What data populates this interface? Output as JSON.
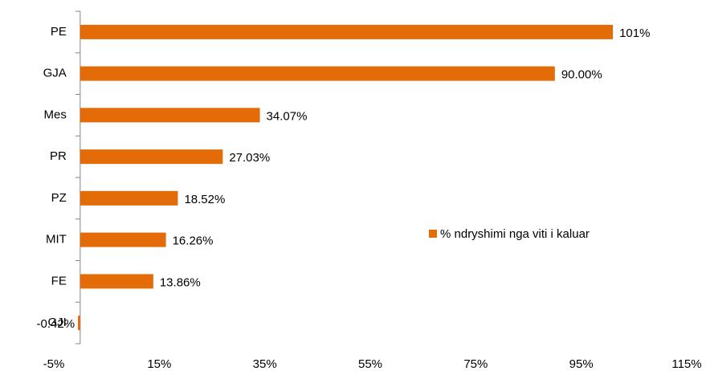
{
  "chart_data": {
    "type": "bar",
    "orientation": "horizontal",
    "categories": [
      "PE",
      "GJA",
      "Mes",
      "PR",
      "PZ",
      "MIT",
      "FE",
      "GJI"
    ],
    "series": [
      {
        "name": "% ndryshimi nga viti i kaluar",
        "color": "#e36c09",
        "values": [
          101,
          90.0,
          34.07,
          27.03,
          18.52,
          16.26,
          13.86,
          -0.42
        ],
        "value_labels": [
          "101%",
          "90.00%",
          "34.07%",
          "27.03%",
          "18.52%",
          "16.26%",
          "13.86%",
          "-0.42%"
        ]
      }
    ],
    "xlim": [
      -5,
      115
    ],
    "xticks": [
      {
        "value": -5,
        "label": "-5%"
      },
      {
        "value": 15,
        "label": "15%"
      },
      {
        "value": 35,
        "label": "35%"
      },
      {
        "value": 55,
        "label": "55%"
      },
      {
        "value": 75,
        "label": "75%"
      },
      {
        "value": 95,
        "label": "95%"
      },
      {
        "value": 115,
        "label": "115%"
      }
    ],
    "grid": false,
    "legend": "right"
  }
}
